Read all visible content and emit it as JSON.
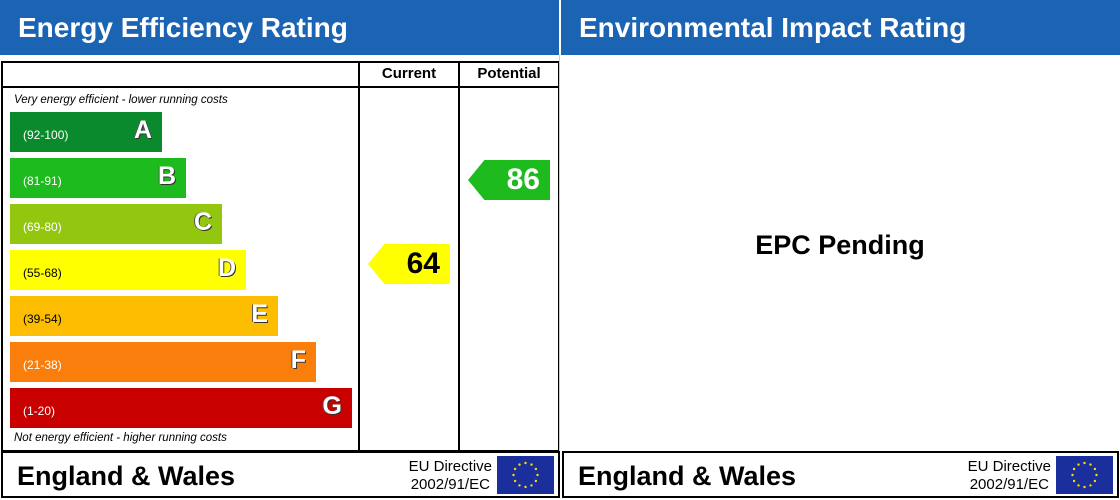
{
  "energy": {
    "title": "Energy Efficiency Rating",
    "col_current": "Current",
    "col_potential": "Potential",
    "top_note": "Very energy efficient - lower running costs",
    "bottom_note": "Not energy efficient - higher running costs",
    "bands": [
      {
        "letter": "A",
        "range": "(92-100)",
        "color": "#0a8a2c",
        "range_color": "#ffffff"
      },
      {
        "letter": "B",
        "range": "(81-91)",
        "color": "#1dbb1d",
        "range_color": "#ffffff"
      },
      {
        "letter": "C",
        "range": "(69-80)",
        "color": "#93c60f",
        "range_color": "#ffffff"
      },
      {
        "letter": "D",
        "range": "(55-68)",
        "color": "#ffff00",
        "range_color": "#000000"
      },
      {
        "letter": "E",
        "range": "(39-54)",
        "color": "#fcbd00",
        "range_color": "#000000"
      },
      {
        "letter": "F",
        "range": "(21-38)",
        "color": "#f97e0c",
        "range_color": "#ffffff"
      },
      {
        "letter": "G",
        "range": "(1-20)",
        "color": "#c80000",
        "range_color": "#ffffff"
      }
    ],
    "current": {
      "value": "64",
      "band": "D",
      "color": "#ffff00"
    },
    "potential": {
      "value": "86",
      "band": "B",
      "color": "#1dbb1d"
    }
  },
  "environmental": {
    "title": "Environmental Impact Rating",
    "status": "EPC Pending"
  },
  "footer": {
    "region": "England & Wales",
    "directive_line1": "EU Directive",
    "directive_line2": "2002/91/EC"
  },
  "colors": {
    "header_blue": "#1b64b4",
    "eu_flag": "#1a2e9c"
  }
}
